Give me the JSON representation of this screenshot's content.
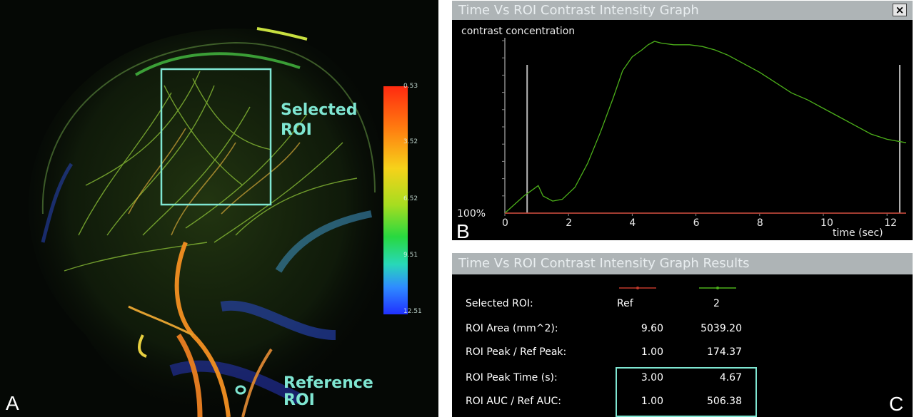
{
  "panel_a": {
    "letter": "A",
    "selected_roi_label_line1": "Selected",
    "selected_roi_label_line2": "ROI",
    "reference_roi_label_line1": "Reference",
    "reference_roi_label_line2": "ROI",
    "colorbar_ticks": [
      "0.53",
      "3.52",
      "6.52",
      "9.51",
      "12.51"
    ],
    "colors": {
      "roi_box": "#7fe6d2",
      "label": "#7fe6d2"
    }
  },
  "panel_b": {
    "letter": "B",
    "window_title": "Time Vs ROI Contrast Intensity Graph",
    "close_label": "×",
    "chart_data": {
      "type": "line",
      "ylabel": "contrast concentration",
      "xlabel": "time (sec)",
      "y_baseline_label": "100%",
      "xlim": [
        0,
        12.6
      ],
      "x_ticks": [
        0,
        2,
        4,
        6,
        8,
        10,
        12
      ],
      "grid": false,
      "markers_x": [
        0.7,
        12.4
      ],
      "series": [
        {
          "color": "#4caf1a",
          "x": [
            0,
            0.3,
            0.6,
            0.9,
            1.05,
            1.2,
            1.5,
            1.8,
            2.2,
            2.6,
            3.0,
            3.4,
            3.7,
            4.0,
            4.3,
            4.5,
            4.7,
            4.9,
            5.3,
            5.8,
            6.2,
            6.6,
            7.0,
            7.5,
            8.0,
            8.5,
            9.0,
            9.5,
            10.0,
            10.5,
            11.0,
            11.5,
            12.0,
            12.6
          ],
          "y": [
            0,
            0.05,
            0.1,
            0.14,
            0.16,
            0.1,
            0.07,
            0.08,
            0.15,
            0.29,
            0.47,
            0.67,
            0.83,
            0.91,
            0.95,
            0.98,
            1.0,
            0.99,
            0.98,
            0.98,
            0.97,
            0.95,
            0.92,
            0.87,
            0.82,
            0.76,
            0.7,
            0.66,
            0.61,
            0.56,
            0.51,
            0.46,
            0.43,
            0.41
          ]
        },
        {
          "name": "Ref",
          "color": "#c0392b",
          "x": [
            0,
            12.6
          ],
          "y": [
            0,
            0
          ]
        }
      ]
    }
  },
  "panel_c": {
    "letter": "C",
    "window_title": "Time Vs ROI Contrast Intensity Graph Results",
    "legend": {
      "ref_color": "#c0392b",
      "roi_color": "#4caf1a"
    },
    "rows": [
      {
        "label": "Selected ROI:",
        "ref": "Ref",
        "roi": "2"
      },
      {
        "label": "ROI Area (mm^2):",
        "ref": "9.60",
        "roi": "5039.20"
      },
      {
        "label": "ROI Peak / Ref Peak:",
        "ref": "1.00",
        "roi": "174.37"
      },
      {
        "label": "ROI Peak Time (s):",
        "ref": "3.00",
        "roi": "4.67"
      },
      {
        "label": "ROI AUC / Ref AUC:",
        "ref": "1.00",
        "roi": "506.38"
      }
    ],
    "highlight_color": "#7fe6d2"
  }
}
